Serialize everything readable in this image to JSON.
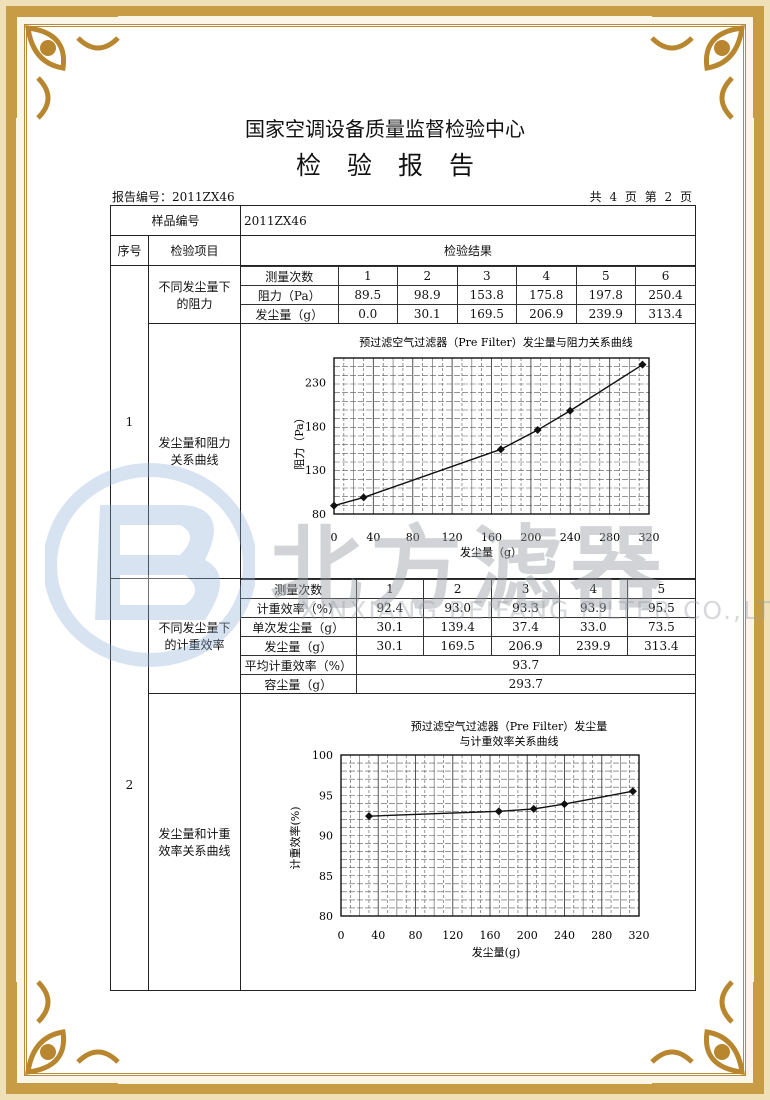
{
  "header": {
    "organization": "国家空调设备质量监督检验中心",
    "document_title": "检验报告",
    "report_no": "报告编号：2011ZX46",
    "page_info": "共 4 页 第 2 页"
  },
  "watermark": {
    "brand_cn": "北方滤器",
    "brand_en": "XINXIANG BEIFANG FILTER CO.,LTD."
  },
  "table": {
    "sample_no_label": "样品编号",
    "sample_no_value": "2011ZX46",
    "col_seq": "序号",
    "col_item": "检验项目",
    "col_result": "检验结果",
    "sections": [
      {
        "seq": "1",
        "resistance_item": "不同发尘量下的阻力",
        "resistance_rows": [
          {
            "label": "测量次数",
            "values": [
              "1",
              "2",
              "3",
              "4",
              "5",
              "6"
            ]
          },
          {
            "label": "阻力（Pa）",
            "values": [
              "89.5",
              "98.9",
              "153.8",
              "175.8",
              "197.8",
              "250.4"
            ]
          },
          {
            "label": "发尘量（g）",
            "values": [
              "0.0",
              "30.1",
              "169.5",
              "206.9",
              "239.9",
              "313.4"
            ]
          }
        ],
        "curve_item": "发尘量和阻力关系曲线"
      },
      {
        "seq": "2",
        "efficiency_item": "不同发尘量下的计重效率",
        "efficiency_rows": [
          {
            "label": "测量次数",
            "values": [
              "1",
              "2",
              "3",
              "4",
              "5"
            ]
          },
          {
            "label": "计重效率（%）",
            "values": [
              "92.4",
              "93.0",
              "93.3",
              "93.9",
              "95.5"
            ]
          },
          {
            "label": "单次发尘量（g）",
            "values": [
              "30.1",
              "139.4",
              "37.4",
              "33.0",
              "73.5"
            ]
          },
          {
            "label": "发尘量（g）",
            "values": [
              "30.1",
              "169.5",
              "206.9",
              "239.9",
              "313.4"
            ]
          }
        ],
        "avg_label": "平均计重效率（%）",
        "avg_value": "93.7",
        "capacity_label": "容尘量（g）",
        "capacity_value": "293.7",
        "curve_item": "发尘量和计重效率关系曲线"
      }
    ]
  },
  "chart_data": [
    {
      "type": "line",
      "title": "预过滤空气过滤器（Pre Filter）发尘量与阻力关系曲线",
      "xlabel": "发尘量（g）",
      "ylabel": "阻力（Pa）",
      "x": [
        0.0,
        30.1,
        169.5,
        206.9,
        239.9,
        313.4
      ],
      "values": [
        89.5,
        98.9,
        153.8,
        175.8,
        197.8,
        250.4
      ],
      "xlim": [
        0,
        320
      ],
      "ylim": [
        80,
        258
      ],
      "xticks": [
        "0",
        "40",
        "80",
        "120",
        "160",
        "200",
        "240",
        "280",
        "320"
      ],
      "yticks": [
        "80",
        "130",
        "180",
        "230"
      ],
      "grid": true,
      "line_color": "#111111"
    },
    {
      "type": "line",
      "title": [
        "预过滤空气过滤器（Pre Filter）发尘量",
        "与计重效率关系曲线"
      ],
      "xlabel": "发尘量(g)",
      "ylabel": "计重效率(%)",
      "x": [
        30.1,
        169.5,
        206.9,
        239.9,
        313.4
      ],
      "values": [
        92.4,
        93.0,
        93.3,
        93.9,
        95.5
      ],
      "xlim": [
        0,
        320
      ],
      "ylim": [
        80,
        100
      ],
      "xticks": [
        "0",
        "40",
        "80",
        "120",
        "160",
        "200",
        "240",
        "280",
        "320"
      ],
      "yticks": [
        "80",
        "85",
        "90",
        "95",
        "100"
      ],
      "grid": true,
      "line_color": "#111111"
    }
  ],
  "colors": {
    "frame_gold": "#c89b45",
    "watermark_blue": "#8fb0d8",
    "watermark_gray": "#9aa0a6"
  }
}
